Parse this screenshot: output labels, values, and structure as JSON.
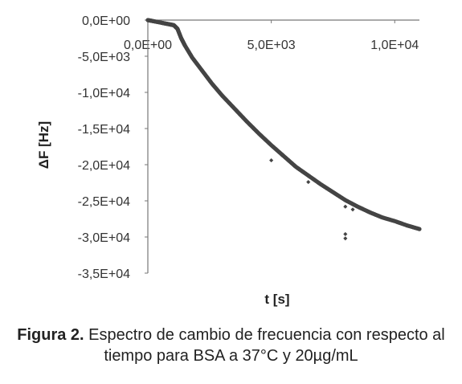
{
  "chart_data": {
    "type": "scatter",
    "xlabel": "t [s]",
    "ylabel": "ΔF [Hz]",
    "xlim": [
      0,
      11000
    ],
    "ylim": [
      -35000,
      0
    ],
    "x_ticks": [
      0,
      5000,
      10000
    ],
    "x_tick_labels": [
      "0,0E+00",
      "5,0E+03",
      "1,0E+04"
    ],
    "y_ticks": [
      0,
      -5000,
      -10000,
      -15000,
      -20000,
      -25000,
      -30000,
      -35000
    ],
    "y_tick_labels": [
      "0,0E+00",
      "-5,0E+03",
      "-1,0E+04",
      "-1,5E+04",
      "-2,0E+04",
      "-2,5E+04",
      "-3,0E+04",
      "-3,5E+04"
    ],
    "grid": false,
    "legend": "none",
    "marker_color": "#444444",
    "series": [
      {
        "values": [
          [
            0,
            0
          ],
          [
            300,
            -200
          ],
          [
            600,
            -400
          ],
          [
            900,
            -600
          ],
          [
            1050,
            -700
          ],
          [
            1200,
            -1200
          ],
          [
            1350,
            -2500
          ],
          [
            1500,
            -3500
          ],
          [
            1800,
            -5200
          ],
          [
            2200,
            -7000
          ],
          [
            2600,
            -8800
          ],
          [
            3000,
            -10400
          ],
          [
            3500,
            -12200
          ],
          [
            4000,
            -14000
          ],
          [
            4500,
            -15700
          ],
          [
            5000,
            -17300
          ],
          [
            5500,
            -18800
          ],
          [
            6000,
            -20300
          ],
          [
            6500,
            -21500
          ],
          [
            7000,
            -22700
          ],
          [
            7500,
            -23800
          ],
          [
            8000,
            -24900
          ],
          [
            8500,
            -25800
          ],
          [
            9000,
            -26600
          ],
          [
            9500,
            -27300
          ],
          [
            10000,
            -27800
          ],
          [
            10500,
            -28400
          ],
          [
            11000,
            -28900
          ]
        ],
        "outliers": [
          [
            5000,
            -19400
          ],
          [
            6500,
            -22400
          ],
          [
            8000,
            -25800
          ],
          [
            8300,
            -26200
          ],
          [
            8000,
            -29600
          ],
          [
            8000,
            -30200
          ]
        ]
      }
    ]
  },
  "caption": {
    "label": "Figura 2.",
    "text": "Espectro de cambio de frecuencia con respecto al tiempo para BSA a 37°C y 20µg/mL"
  }
}
